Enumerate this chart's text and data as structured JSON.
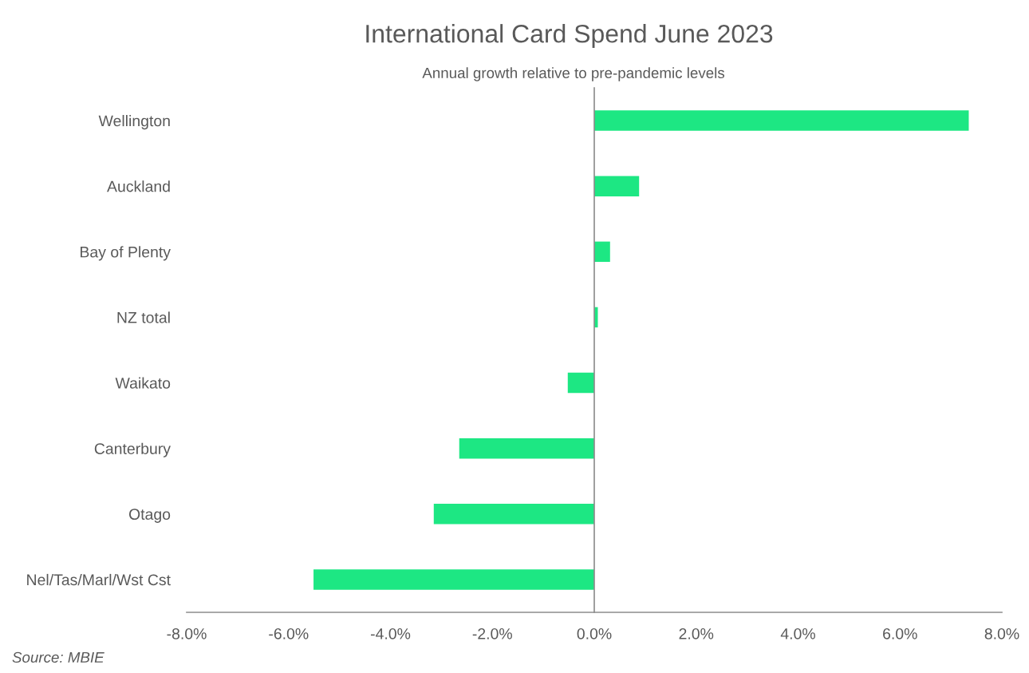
{
  "chart_data": {
    "type": "bar",
    "orientation": "horizontal",
    "title": "International Card Spend June 2023",
    "subtitle": "Annual growth relative to pre-pandemic levels",
    "categories": [
      "Wellington",
      "Auckland",
      "Bay of Plenty",
      "NZ total",
      "Waikato",
      "Canterbury",
      "Otago",
      "Nel/Tas/Marl/Wst Cst"
    ],
    "values": [
      7.35,
      0.88,
      0.31,
      0.07,
      -0.52,
      -2.65,
      -3.15,
      -5.51
    ],
    "color": "#1de783",
    "xlim": [
      -8,
      8
    ],
    "xticks": [
      {
        "value": -8,
        "label": "-8.0%"
      },
      {
        "value": -6,
        "label": "-6.0%"
      },
      {
        "value": -4,
        "label": "-4.0%"
      },
      {
        "value": -2,
        "label": "-2.0%"
      },
      {
        "value": 0,
        "label": "0.0%"
      },
      {
        "value": 2,
        "label": "2.0%"
      },
      {
        "value": 4,
        "label": "4.0%"
      },
      {
        "value": 6,
        "label": "6.0%"
      },
      {
        "value": 8,
        "label": "8.0%"
      }
    ],
    "annotations": [
      "Source: MBIE"
    ]
  }
}
